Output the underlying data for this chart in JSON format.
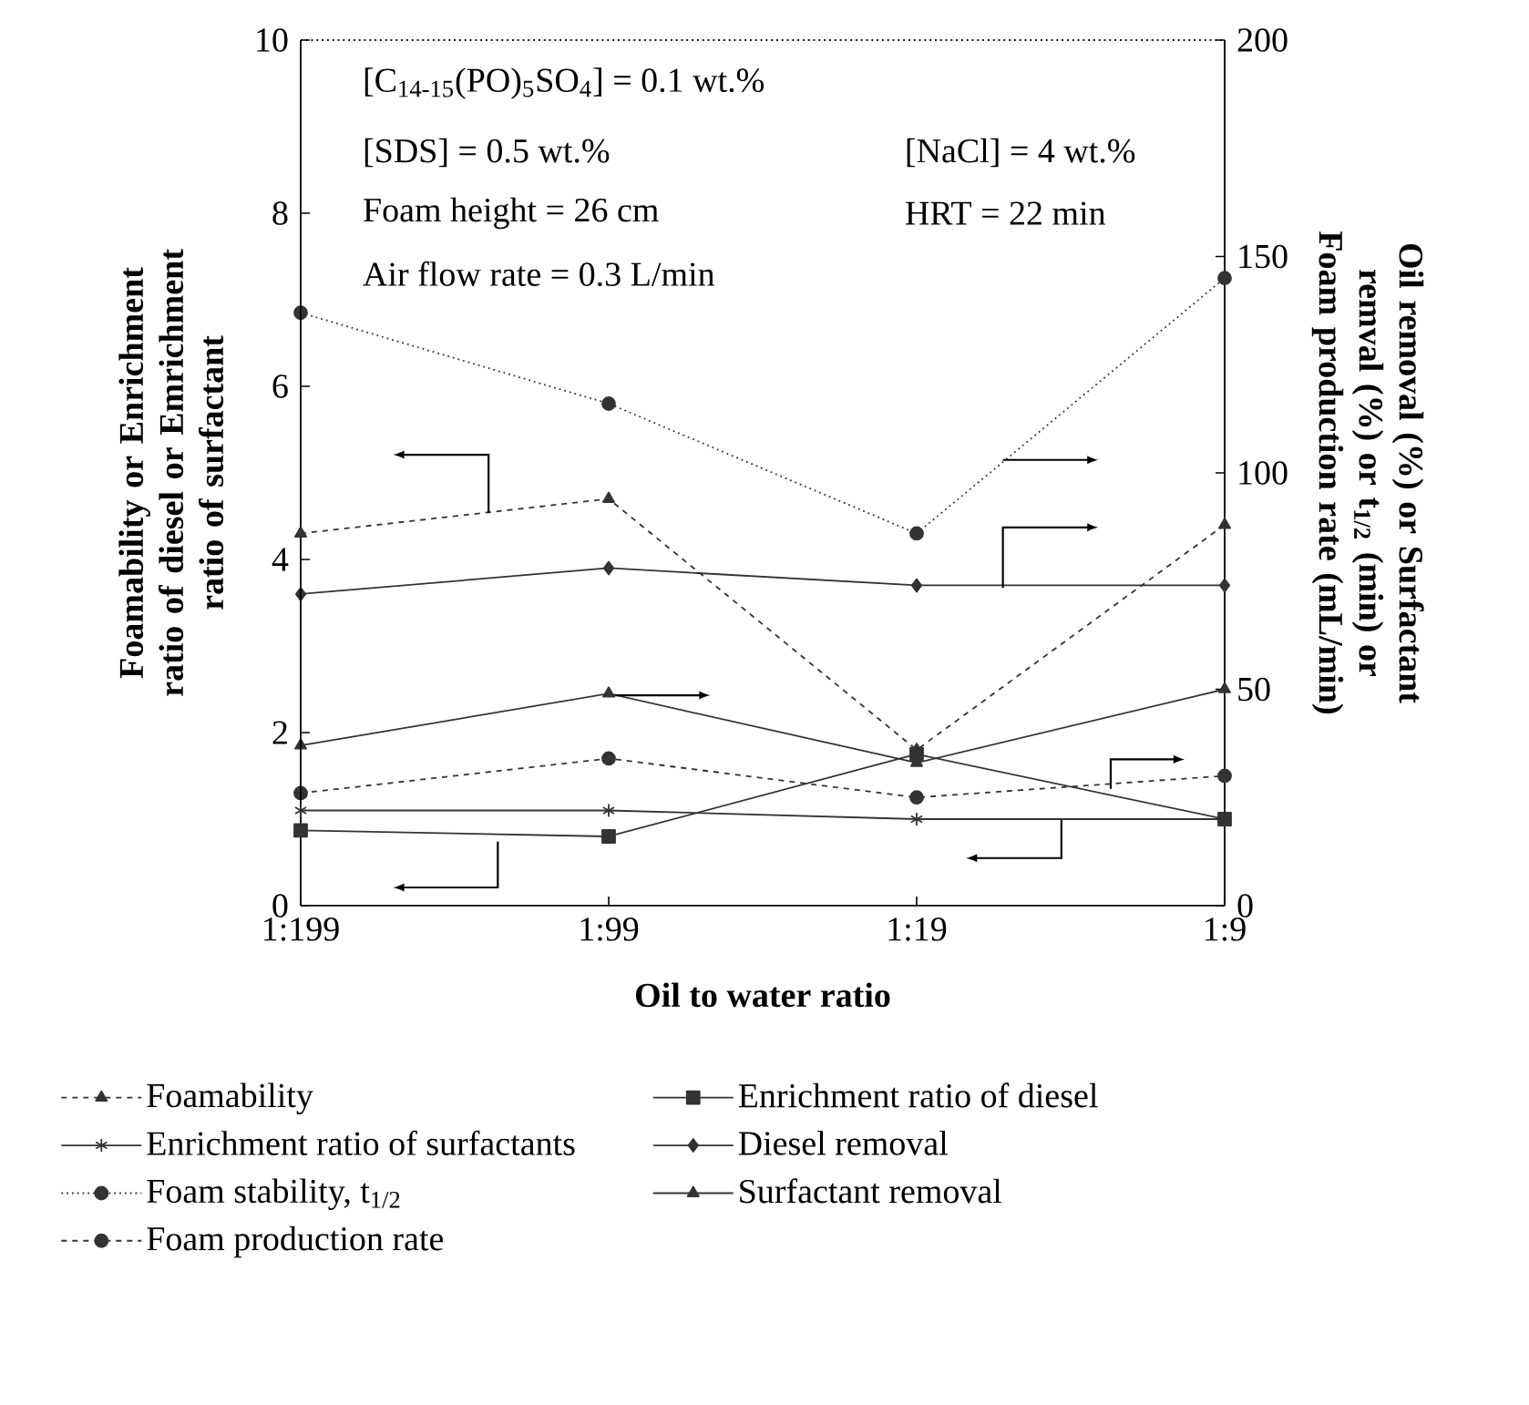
{
  "chart_data": {
    "type": "line",
    "xlabel": "Oil to water ratio",
    "ylabel": "Foamability or Enrichment ratio of diesel or Emrichment ratio of surfactant",
    "y2label": "Oil removal (%) or Surfactant remval (%) or t$_{1/2}$ (min) or Foam production rate (mL/min)",
    "categories": [
      "1:199",
      "1:99",
      "1:19",
      "1:9"
    ],
    "ylim": [
      0,
      10
    ],
    "yticks": [
      0,
      2,
      4,
      6,
      8,
      10
    ],
    "y2lim": [
      0,
      200
    ],
    "y2ticks": [
      0,
      50,
      100,
      150,
      200
    ],
    "legend": "bottom",
    "annotations": [
      "[C$_{14-15}$(PO)$_{5}$SO$_{4}$] = 0.1 wt.%",
      "[SDS] = 0.5 wt.%",
      "Foam height = 26 cm",
      "Air flow rate = 0.3 L/min",
      "[NaCl] = 4 wt.%",
      "HRT = 22 min"
    ],
    "series": [
      {
        "name": "Foamability",
        "color": "#333333",
        "values": [
          4.3,
          4.7,
          1.8,
          4.4
        ],
        "marker": "triangle",
        "line_style": "dashed"
      },
      {
        "name": "Enrichment ratio of diesel",
        "color": "#333333",
        "values": [
          0.87,
          0.8,
          1.75,
          1.0
        ],
        "marker": "square",
        "line_style": "solid"
      },
      {
        "name": "Enrichment ratio of surfactants",
        "color": "#333333",
        "values": [
          1.1,
          1.1,
          1.0,
          1.0
        ],
        "marker": "cross",
        "line_style": "solid"
      },
      {
        "name": "Diesel removal",
        "color": "#333333",
        "values": [
          72,
          78,
          74,
          74
        ],
        "marker": "diamond",
        "line_style": "solid",
        "axis": "y2"
      },
      {
        "name": "Foam stability, t$_{1/2}$",
        "color": "#333333",
        "values": [
          137,
          116,
          86,
          145
        ],
        "marker": "circle",
        "line_style": "dotted",
        "axis": "y2"
      },
      {
        "name": "Surfactant removal",
        "color": "#333333",
        "values": [
          37,
          49,
          33,
          50
        ],
        "marker": "triangle",
        "line_style": "solid",
        "axis": "y2"
      },
      {
        "name": "Foam production rate",
        "color": "#333333",
        "values": [
          26,
          34,
          25,
          30
        ],
        "marker": "circle",
        "line_style": "dashed",
        "axis": "y2"
      }
    ]
  }
}
